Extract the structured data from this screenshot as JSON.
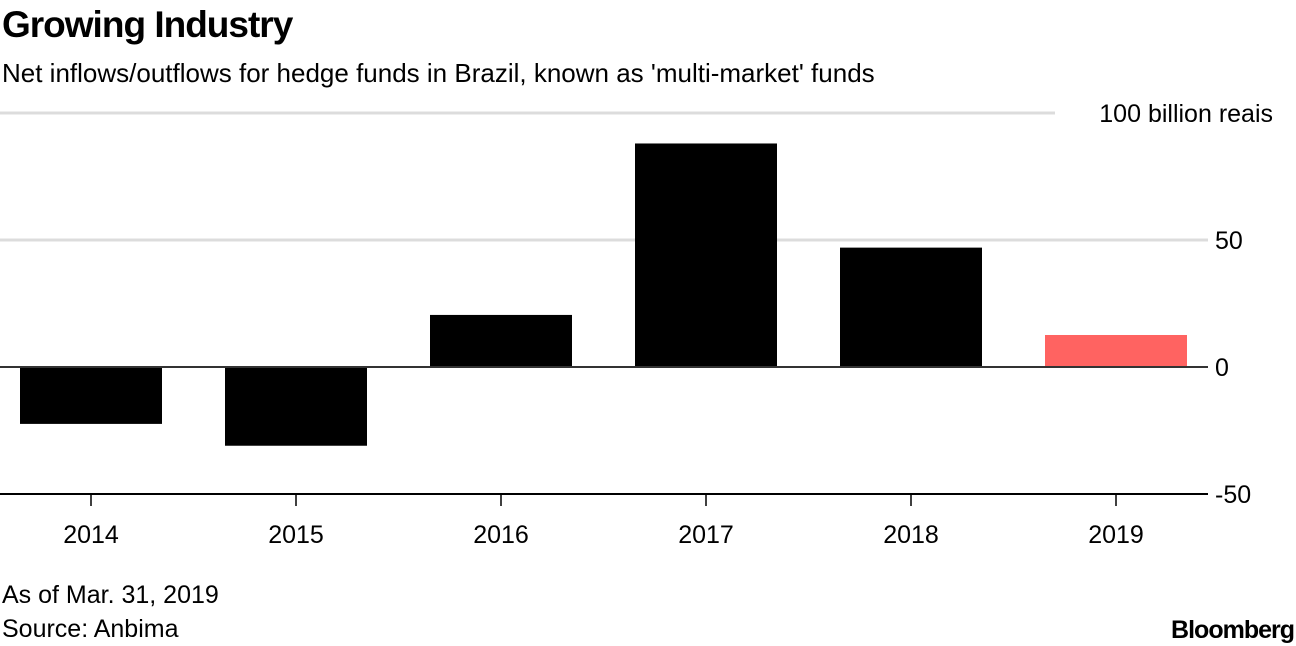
{
  "chart_data": {
    "type": "bar",
    "title": "Growing Industry",
    "subtitle": "Net inflows/outflows for hedge funds in Brazil, known as 'multi-market' funds",
    "categories": [
      "2014",
      "2015",
      "2016",
      "2017",
      "2018",
      "2019"
    ],
    "values": [
      -22.4,
      -31,
      20.5,
      88,
      47,
      12.6
    ],
    "colors": [
      "#000000",
      "#000000",
      "#000000",
      "#000000",
      "#000000",
      "#ff6361"
    ],
    "ylabel": "100 billion reais",
    "ylim": [
      -50,
      100
    ],
    "yticks": [
      {
        "value": 100,
        "label": "100 billion reais"
      },
      {
        "value": 50,
        "label": "50"
      },
      {
        "value": 0,
        "label": "0"
      },
      {
        "value": -50,
        "label": "-50"
      }
    ],
    "grid": true,
    "xlabel": ""
  },
  "footer": {
    "as_of": "As of Mar. 31, 2019",
    "source": "Source: Anbima",
    "brand": "Bloomberg"
  }
}
